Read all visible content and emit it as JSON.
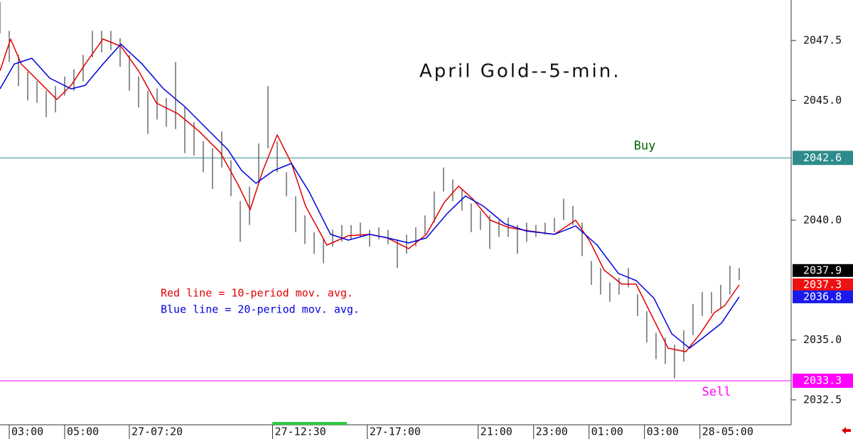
{
  "chart_data": {
    "type": "ohlc",
    "title": "April Gold--5-min.",
    "annotations": [
      {
        "text": "Red line = 10-period mov. avg.",
        "color": "#e00000"
      },
      {
        "text": "Blue line = 20-period mov. avg.",
        "color": "#0000dd"
      }
    ],
    "xlim": [
      0,
      342.5
    ],
    "xticks": [
      {
        "value": 4,
        "label": "03:00"
      },
      {
        "value": 28,
        "label": "05:00"
      },
      {
        "value": 56,
        "label": "27-07:20"
      },
      {
        "value": 118,
        "label": "27-12:30"
      },
      {
        "value": 159,
        "label": "27-17:00"
      },
      {
        "value": 207,
        "label": "21:00"
      },
      {
        "value": 231,
        "label": "23:00"
      },
      {
        "value": 255,
        "label": "01:00"
      },
      {
        "value": 279,
        "label": "03:00"
      },
      {
        "value": 303,
        "label": "28-05:00"
      }
    ],
    "ylim": [
      2031.46,
      2049.19
    ],
    "yticks": [
      2047.5,
      {
        "value": 2045,
        "label": "2045.0"
      },
      {
        "value": 2040,
        "label": "2040.0"
      },
      {
        "value": 2035,
        "label": "2035.0"
      },
      2032.5
    ],
    "bars": {
      "color": "#555555",
      "x": [
        0,
        4,
        8,
        12,
        16,
        20,
        24,
        28,
        32,
        36,
        40,
        44,
        48,
        52,
        56,
        60,
        64,
        68,
        72,
        76,
        80,
        84,
        88,
        92,
        96,
        100,
        104,
        108,
        112,
        116,
        120,
        124,
        128,
        132,
        136,
        140,
        144,
        148,
        152,
        156,
        160,
        164,
        168,
        172,
        176,
        180,
        184,
        188,
        192,
        196,
        200,
        204,
        208,
        212,
        216,
        220,
        224,
        228,
        232,
        236,
        240,
        244,
        248,
        252,
        256,
        260,
        264,
        268,
        272,
        276,
        280,
        284,
        288,
        292,
        296,
        300,
        304,
        308,
        312,
        316,
        320
      ],
      "high": [
        2049.1,
        2047.9,
        2046.9,
        2046.2,
        2045.8,
        2045.4,
        2045.6,
        2046.0,
        2046.3,
        2046.9,
        2047.9,
        2047.9,
        2047.9,
        2047.6,
        2046.9,
        2046.0,
        2045.4,
        2045.5,
        2045.1,
        2046.6,
        2044.7,
        2044.1,
        2043.3,
        2043.0,
        2043.7,
        2042.5,
        2040.8,
        2041.4,
        2043.2,
        2045.6,
        2043.3,
        2042.0,
        2041.0,
        2040.2,
        2039.5,
        2039.2,
        2039.6,
        2039.8,
        2039.8,
        2039.9,
        2039.6,
        2039.7,
        2039.6,
        2039.2,
        2039.4,
        2039.7,
        2040.2,
        2041.2,
        2042.2,
        2041.7,
        2041.3,
        2040.7,
        2040.4,
        2040.2,
        2040.0,
        2040.1,
        2039.8,
        2039.9,
        2039.8,
        2039.9,
        2040.1,
        2040.9,
        2040.6,
        2039.9,
        2038.3,
        2038.0,
        2037.4,
        2037.6,
        2038.0,
        2036.9,
        2036.2,
        2035.3,
        2035.1,
        2034.8,
        2035.4,
        2036.5,
        2037.0,
        2037.0,
        2037.3,
        2038.1,
        2038.0
      ],
      "low": [
        2047.8,
        2046.6,
        2045.6,
        2045.0,
        2044.9,
        2044.3,
        2044.5,
        2045.2,
        2045.4,
        2045.8,
        2046.8,
        2047.0,
        2047.1,
        2046.4,
        2045.4,
        2044.7,
        2043.6,
        2044.2,
        2043.9,
        2043.8,
        2042.8,
        2042.7,
        2042.0,
        2041.3,
        2042.2,
        2041.0,
        2039.1,
        2039.8,
        2041.5,
        2043.0,
        2042.0,
        2041.0,
        2039.5,
        2039.0,
        2038.6,
        2038.2,
        2038.9,
        2039.1,
        2039.2,
        2039.3,
        2038.9,
        2039.2,
        2039.0,
        2038.0,
        2038.6,
        2038.9,
        2039.4,
        2039.9,
        2041.2,
        2040.8,
        2040.4,
        2039.5,
        2039.6,
        2038.8,
        2039.3,
        2039.3,
        2038.6,
        2039.1,
        2039.3,
        2039.4,
        2039.5,
        2040.0,
        2039.8,
        2038.5,
        2037.3,
        2036.9,
        2036.6,
        2036.9,
        2037.2,
        2036.0,
        2034.9,
        2034.2,
        2034.0,
        2033.4,
        2034.1,
        2035.2,
        2036.0,
        2036.1,
        2036.3,
        2036.9,
        2037.5
      ]
    },
    "series": [
      {
        "color": "#e00000",
        "x": [
          0,
          4.6,
          9.2,
          15.4,
          24.6,
          30.8,
          36.9,
          44.6,
          52.3,
          60,
          67.7,
          76.9,
          86.2,
          95.4,
          103.1,
          108.3,
          113.8,
          120,
          126.2,
          132.3,
          141.5,
          150.8,
          160,
          167.7,
          176.9,
          184.6,
          192.3,
          198.5,
          204.6,
          212.3,
          220,
          229.2,
          240,
          249.2,
          255.4,
          261.5,
          269.2,
          275.4,
          281.5,
          289.2,
          296.9,
          303.1,
          309.2,
          313.8,
          320
        ],
        "values": [
          2046.23,
          2047.56,
          2046.52,
          2045.93,
          2045.04,
          2045.63,
          2046.52,
          2047.56,
          2047.26,
          2046.23,
          2044.89,
          2044.45,
          2043.71,
          2042.82,
          2041.48,
          2040.44,
          2042.07,
          2043.56,
          2042.37,
          2040.59,
          2038.96,
          2039.35,
          2039.41,
          2039.26,
          2038.81,
          2039.41,
          2040.74,
          2041.42,
          2040.89,
          2040.0,
          2039.7,
          2039.55,
          2039.41,
          2040.0,
          2039.11,
          2037.92,
          2037.33,
          2037.33,
          2036.14,
          2034.66,
          2034.51,
          2035.26,
          2036.14,
          2036.44,
          2037.3
        ]
      },
      {
        "color": "#0000dd",
        "x": [
          0,
          6.2,
          13.8,
          21.5,
          30.8,
          36.9,
          44.6,
          52.3,
          61.5,
          70.8,
          80,
          89.2,
          98.5,
          104.6,
          110.8,
          118.5,
          126.2,
          133.8,
          143.1,
          150.8,
          160,
          167.7,
          176.9,
          184.6,
          193.8,
          201.5,
          209.2,
          218.5,
          227.7,
          240,
          249.2,
          258.5,
          267.7,
          275.4,
          283.1,
          290.8,
          298.5,
          304.6,
          312.3,
          320
        ],
        "values": [
          2045.48,
          2046.52,
          2046.76,
          2045.93,
          2045.48,
          2045.63,
          2046.52,
          2047.35,
          2046.52,
          2045.48,
          2044.74,
          2043.85,
          2042.96,
          2042.07,
          2041.54,
          2042.07,
          2042.37,
          2041.19,
          2039.41,
          2039.17,
          2039.41,
          2039.26,
          2039.05,
          2039.26,
          2040.3,
          2041.01,
          2040.59,
          2039.85,
          2039.55,
          2039.41,
          2039.76,
          2038.96,
          2037.78,
          2037.48,
          2036.74,
          2035.26,
          2034.66,
          2035.11,
          2035.7,
          2036.8
        ]
      }
    ],
    "levels": [
      {
        "value": 2042.6,
        "color": "#2e8b8b",
        "label": "Buy",
        "label_color": "#006400"
      },
      {
        "value": 2033.3,
        "color": "#ff00ff",
        "label": "Sell",
        "label_color": "#ff00ff"
      }
    ],
    "markers": [
      {
        "value": 2037.9,
        "color": "#000000"
      },
      {
        "value": 2037.3,
        "color": "#ee1111"
      },
      {
        "value": 2036.8,
        "color": "#1a1aee"
      }
    ]
  }
}
